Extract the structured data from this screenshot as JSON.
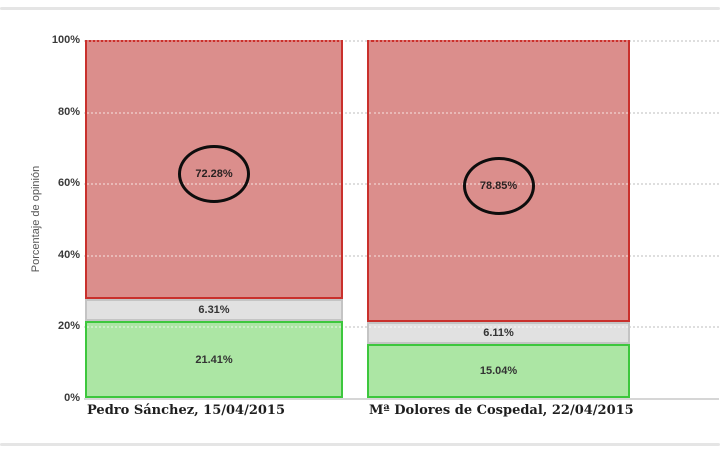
{
  "page": {
    "background": "#ffffff",
    "divider_color": "#E5E5E5"
  },
  "chart_data": {
    "type": "bar",
    "stacked": true,
    "title": "",
    "ylabel": "Porcentaje de opinión",
    "xlabel": "",
    "ylim": [
      0,
      100
    ],
    "yticks": [
      0,
      20,
      40,
      60,
      80,
      100
    ],
    "ytick_labels": [
      "0%",
      "20%",
      "40%",
      "60%",
      "80%",
      "100%"
    ],
    "grid": "horizontal dotted",
    "legend": "none",
    "categories": [
      "Pedro Sánchez, 15/04/2015",
      "Mª Dolores de Cospedal, 22/04/2015"
    ],
    "series": [
      {
        "name": "green-bottom",
        "fill": "#ACE6A4",
        "border": "#3DC73D",
        "values": [
          21.41,
          15.04
        ],
        "labels": [
          "21.41%",
          "15.04%"
        ],
        "circled": false
      },
      {
        "name": "gray-middle",
        "fill": "#E1E1E1",
        "border": "#C4C4C4",
        "values": [
          6.31,
          6.11
        ],
        "labels": [
          "6.31%",
          "6.11%"
        ],
        "circled": false
      },
      {
        "name": "red-top",
        "fill": "#DB8E8C",
        "border": "#C9302C",
        "values": [
          72.28,
          78.85
        ],
        "labels": [
          "72.28%",
          "78.85%"
        ],
        "circled": true
      }
    ]
  }
}
